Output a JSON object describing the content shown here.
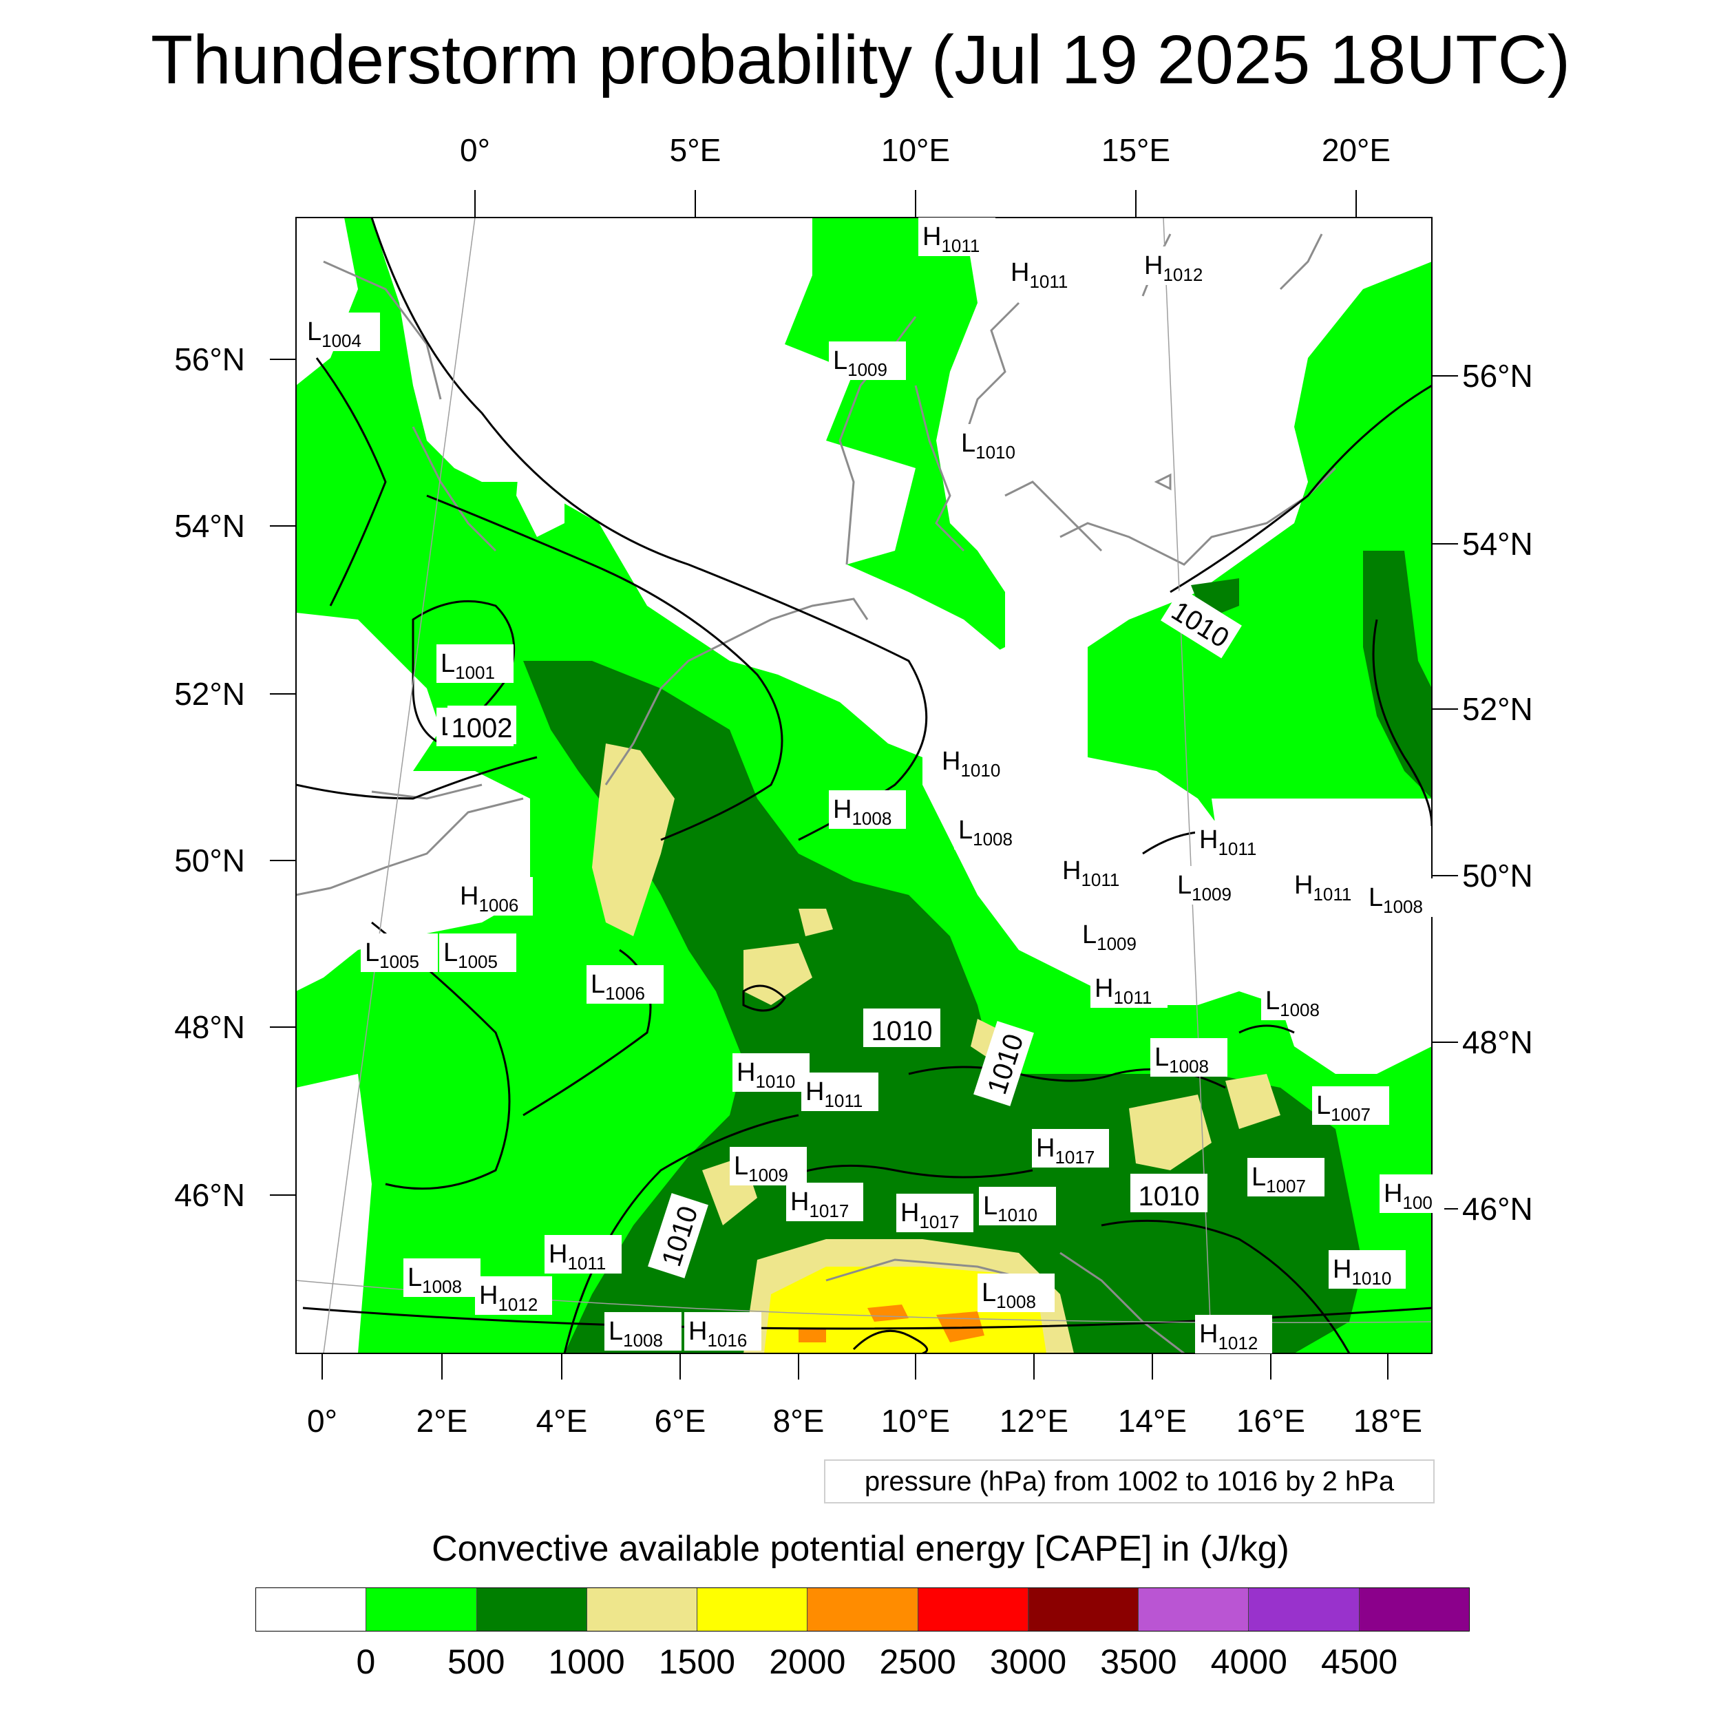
{
  "title": "Thunderstorm probability (Jul 19 2025 18UTC)",
  "axes": {
    "top_lon_labels": [
      "0°",
      "5°E",
      "10°E",
      "15°E",
      "20°E"
    ],
    "bottom_lon_labels": [
      "0°",
      "2°E",
      "4°E",
      "6°E",
      "8°E",
      "10°E",
      "12°E",
      "14°E",
      "16°E",
      "18°E"
    ],
    "left_lat_labels": [
      "56°N",
      "54°N",
      "52°N",
      "50°N",
      "48°N",
      "46°N"
    ],
    "right_lat_labels": [
      "56°N",
      "54°N",
      "52°N",
      "50°N",
      "48°N",
      "46°N"
    ]
  },
  "pressure_labels": [
    {
      "kind": "H",
      "value": "1011"
    },
    {
      "kind": "H",
      "value": "1011"
    },
    {
      "kind": "H",
      "value": "1012"
    },
    {
      "kind": "L",
      "value": "1004"
    },
    {
      "kind": "L",
      "value": "1009"
    },
    {
      "kind": "L",
      "value": "1010"
    },
    {
      "kind": "L",
      "value": "1001"
    },
    {
      "kind": "L",
      "value": "1002"
    },
    {
      "kind": "H",
      "value": "1010"
    },
    {
      "kind": "H",
      "value": "1008"
    },
    {
      "kind": "L",
      "value": "1008"
    },
    {
      "kind": "H",
      "value": "1011"
    },
    {
      "kind": "H",
      "value": "1011"
    },
    {
      "kind": "L",
      "value": "1009"
    },
    {
      "kind": "H",
      "value": "1011"
    },
    {
      "kind": "L",
      "value": "1008"
    },
    {
      "kind": "H",
      "value": "1006"
    },
    {
      "kind": "L",
      "value": "1005"
    },
    {
      "kind": "L",
      "value": "1005"
    },
    {
      "kind": "L",
      "value": "1009"
    },
    {
      "kind": "L",
      "value": "1006"
    },
    {
      "kind": "H",
      "value": "1011"
    },
    {
      "kind": "L",
      "value": "1008"
    },
    {
      "kind": "L",
      "value": "1008"
    },
    {
      "kind": "H",
      "value": "1010"
    },
    {
      "kind": "H",
      "value": "1011"
    },
    {
      "kind": "L",
      "value": "1007"
    },
    {
      "kind": "H",
      "value": "1017"
    },
    {
      "kind": "L",
      "value": "1009"
    },
    {
      "kind": "L",
      "value": "1007"
    },
    {
      "kind": "H",
      "value": "1017"
    },
    {
      "kind": "H",
      "value": "1017"
    },
    {
      "kind": "L",
      "value": "1010"
    },
    {
      "kind": "H",
      "value": "1011"
    },
    {
      "kind": "H",
      "value": "1010"
    },
    {
      "kind": "L",
      "value": "1008"
    },
    {
      "kind": "H",
      "value": "1012"
    },
    {
      "kind": "L",
      "value": "1008"
    },
    {
      "kind": "L",
      "value": "1008"
    },
    {
      "kind": "H",
      "value": "1016"
    },
    {
      "kind": "H",
      "value": "1012"
    },
    {
      "kind": "H",
      "value": "100"
    }
  ],
  "isobar_labels": [
    "1002",
    "1010",
    "1010",
    "1010",
    "1010",
    "1010"
  ],
  "info_box": "pressure (hPa) from 1002 to 1016 by 2 hPa",
  "colorbar": {
    "title": "Convective available potential energy [CAPE] in (J/kg)",
    "colors": [
      "#ffffff",
      "#00ff00",
      "#007f00",
      "#eee68c",
      "#ffff00",
      "#ff8c00",
      "#ff0000",
      "#8b0000",
      "#ba55d3",
      "#9932cc",
      "#8b008b"
    ],
    "tick_labels": [
      "0",
      "500",
      "1000",
      "1500",
      "2000",
      "2500",
      "3000",
      "3500",
      "4000",
      "4500"
    ]
  }
}
